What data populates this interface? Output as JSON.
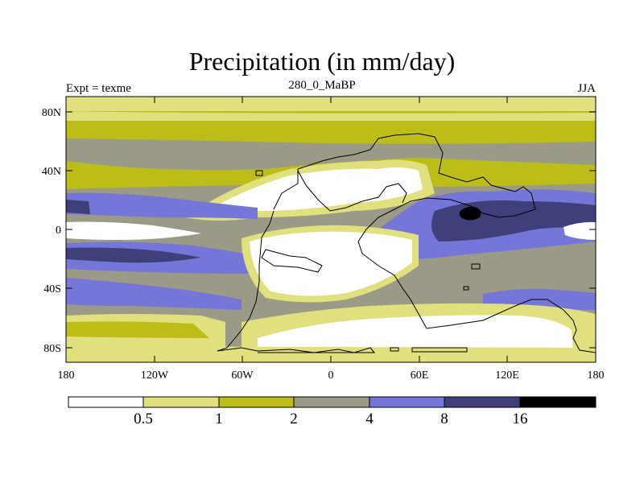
{
  "title": "Precipitation (in mm/day)",
  "subtitle_left": "Expt = texme",
  "subtitle_center": "280_0_MaBP",
  "subtitle_right": "JJA",
  "colors": {
    "lt05": "#ffffff",
    "c05_1": "#e0e07e",
    "c1_2": "#bdbd1a",
    "c2_4": "#9a9a86",
    "c4_8": "#7676d8",
    "c8_16": "#3f3f7c",
    "gt16": "#000000",
    "coast": "#000000"
  },
  "y_ticks": [
    "80N",
    "40N",
    "0",
    "40S",
    "80S"
  ],
  "x_ticks": [
    "180",
    "120W",
    "60W",
    "0",
    "60E",
    "120E",
    "180"
  ],
  "colorbar": {
    "labels": [
      "0.5",
      "1",
      "2",
      "4",
      "8",
      "16"
    ]
  }
}
